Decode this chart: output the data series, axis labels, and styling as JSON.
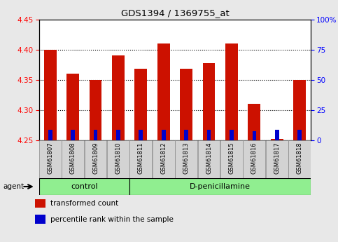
{
  "title": "GDS1394 / 1369755_at",
  "samples": [
    "GSM61807",
    "GSM61808",
    "GSM61809",
    "GSM61810",
    "GSM61811",
    "GSM61812",
    "GSM61813",
    "GSM61814",
    "GSM61815",
    "GSM61816",
    "GSM61817",
    "GSM61818"
  ],
  "red_tops": [
    4.4,
    4.36,
    4.35,
    4.39,
    4.368,
    4.41,
    4.368,
    4.378,
    4.41,
    4.31,
    4.253,
    4.35
  ],
  "blue_tops": [
    4.268,
    4.268,
    4.267,
    4.267,
    4.268,
    4.268,
    4.267,
    4.267,
    4.267,
    4.265,
    4.268,
    4.267
  ],
  "base": 4.25,
  "ylim_left": [
    4.25,
    4.45
  ],
  "ylim_right": [
    0,
    100
  ],
  "yticks_left": [
    4.25,
    4.3,
    4.35,
    4.4,
    4.45
  ],
  "yticks_right": [
    0,
    25,
    50,
    75,
    100
  ],
  "ytick_labels_right": [
    "0",
    "25",
    "50",
    "75",
    "100%"
  ],
  "red_color": "#cc1100",
  "blue_color": "#0000cc",
  "bar_width": 0.55,
  "control_label": "control",
  "treatment_label": "D-penicillamine",
  "agent_label": "agent",
  "legend_red": "transformed count",
  "legend_blue": "percentile rank within the sample",
  "bg_color": "#e8e8e8",
  "plot_bg": "#ffffff",
  "group_bg": "#90ee90",
  "tick_label_bg": "#d3d3d3"
}
